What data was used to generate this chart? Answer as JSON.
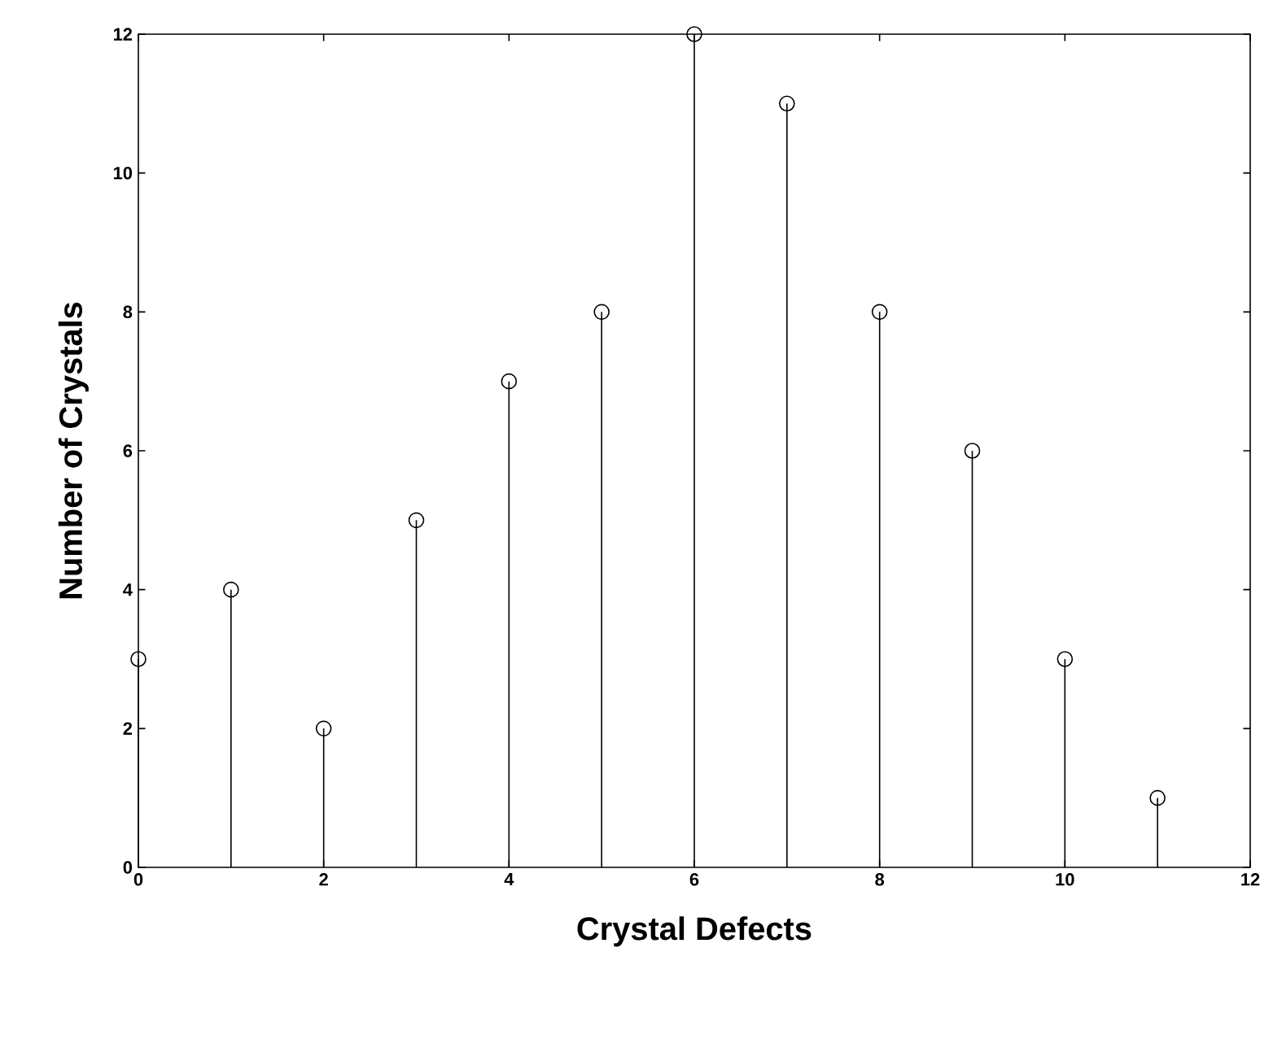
{
  "chart_data": {
    "type": "lollipop",
    "xlabel": "Crystal Defects",
    "ylabel": "Number of Crystals",
    "x": [
      0,
      1,
      2,
      3,
      4,
      5,
      6,
      7,
      8,
      9,
      10,
      11
    ],
    "values": [
      3,
      4,
      2,
      5,
      7,
      8,
      12,
      11,
      8,
      6,
      3,
      1
    ],
    "color": "#000000",
    "marker": "circle",
    "xlim": [
      0,
      12
    ],
    "ylim": [
      0,
      12
    ],
    "xticks": [
      0,
      2,
      4,
      6,
      8,
      10,
      12
    ],
    "yticks": [
      0,
      2,
      4,
      6,
      8,
      10,
      12
    ]
  }
}
